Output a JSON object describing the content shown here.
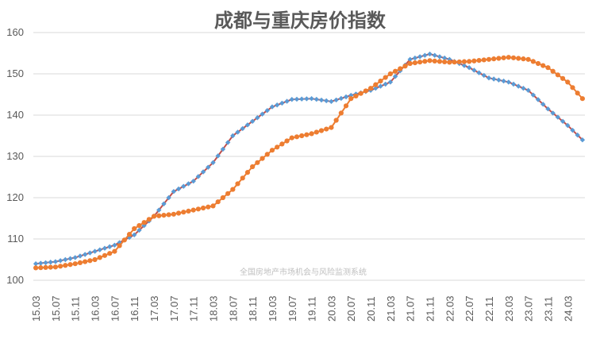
{
  "chart_data": {
    "type": "line",
    "title": "成都与重庆房价指数",
    "watermark": "全国房地产市场机会与风险监测系统",
    "ylim": [
      100,
      160
    ],
    "yticks": [
      100,
      110,
      120,
      130,
      140,
      150,
      160
    ],
    "grid": "horizontal",
    "legend": "none",
    "x_labels": [
      "15.03",
      "15.07",
      "15.11",
      "16.03",
      "16.07",
      "16.11",
      "17.03",
      "17.07",
      "17.11",
      "18.03",
      "18.07",
      "18.11",
      "19.03",
      "19.07",
      "19.11",
      "20.03",
      "20.07",
      "20.11",
      "21.03",
      "21.07",
      "21.11",
      "22.03",
      "22.07",
      "22.11",
      "23.03",
      "23.07",
      "23.11",
      "24.03"
    ],
    "series": [
      {
        "color": "#5b9bd5",
        "line_color": "#c0504d",
        "marker": "diamond",
        "anchors": [
          [
            0,
            104.0
          ],
          [
            4,
            104.5
          ],
          [
            8,
            105.5
          ],
          [
            12,
            107.0
          ],
          [
            16,
            108.5
          ],
          [
            20,
            111.0
          ],
          [
            24,
            115.5
          ],
          [
            28,
            121.5
          ],
          [
            32,
            124.0
          ],
          [
            36,
            128.5
          ],
          [
            40,
            135.0
          ],
          [
            44,
            138.5
          ],
          [
            48,
            142.0
          ],
          [
            52,
            143.8
          ],
          [
            56,
            144.0
          ],
          [
            60,
            143.3
          ],
          [
            64,
            144.8
          ],
          [
            68,
            146.0
          ],
          [
            72,
            148.0
          ],
          [
            76,
            153.5
          ],
          [
            80,
            154.8
          ],
          [
            84,
            153.5
          ],
          [
            88,
            151.5
          ],
          [
            92,
            149.0
          ],
          [
            96,
            148.0
          ],
          [
            100,
            146.0
          ],
          [
            104,
            141.5
          ],
          [
            108,
            137.5
          ],
          [
            111,
            134.0
          ]
        ]
      },
      {
        "color": "#ed7d31",
        "line_color": "#ed7d31",
        "marker": "circle",
        "anchors": [
          [
            0,
            103.0
          ],
          [
            4,
            103.2
          ],
          [
            8,
            104.0
          ],
          [
            12,
            105.0
          ],
          [
            16,
            107.0
          ],
          [
            20,
            112.5
          ],
          [
            24,
            115.5
          ],
          [
            28,
            116.0
          ],
          [
            32,
            117.0
          ],
          [
            36,
            118.0
          ],
          [
            40,
            122.0
          ],
          [
            44,
            127.5
          ],
          [
            48,
            131.5
          ],
          [
            52,
            134.5
          ],
          [
            56,
            135.5
          ],
          [
            60,
            137.0
          ],
          [
            64,
            144.0
          ],
          [
            68,
            146.5
          ],
          [
            72,
            150.0
          ],
          [
            76,
            152.5
          ],
          [
            80,
            153.2
          ],
          [
            84,
            152.8
          ],
          [
            88,
            153.0
          ],
          [
            92,
            153.5
          ],
          [
            96,
            154.0
          ],
          [
            100,
            153.5
          ],
          [
            104,
            151.5
          ],
          [
            108,
            148.0
          ],
          [
            111,
            144.0
          ]
        ]
      }
    ]
  }
}
